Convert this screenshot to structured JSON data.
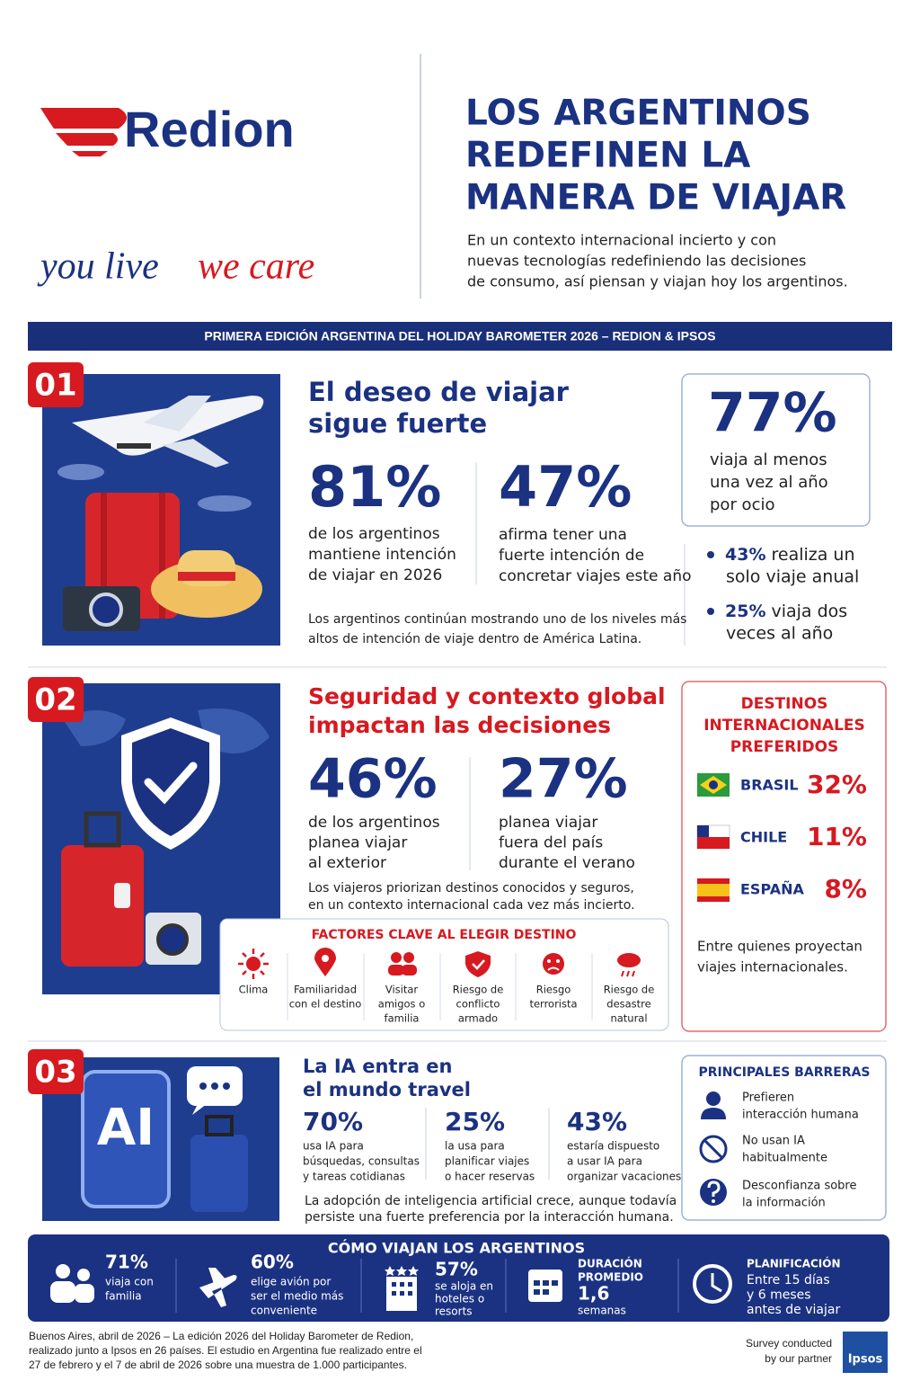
{
  "header": {
    "logo": "Redion",
    "tagline_1": "you live",
    "tagline_2": "we care",
    "title": [
      "LOS ARGENTINOS",
      "REDEFINEN LA",
      "MANERA DE VIAJAR"
    ],
    "intro": [
      "En un contexto internacional incierto y con",
      "nuevas tecnologías redefiniendo las decisiones",
      "de consumo, así piensan y viajan hoy los argentinos."
    ]
  },
  "banner": "PRIMERA EDICIÓN ARGENTINA DEL HOLIDAY BAROMETER 2026 – REDION & IPSOS",
  "section_1": {
    "number": "01",
    "title": [
      "El deseo de viajar",
      "sigue fuerte"
    ],
    "stats": [
      {
        "value": "81%",
        "text": [
          "de los argentinos",
          "mantiene intención",
          "de viajar en 2026"
        ]
      },
      {
        "value": "47%",
        "text": [
          "afirma tener una",
          "fuerte intención de",
          "concretar viajes este año"
        ]
      }
    ],
    "note": [
      "Los argentinos continúan mostrando uno de los niveles más",
      "altos de intención de viaje dentro de América Latina."
    ],
    "highlight": {
      "value": "77%",
      "text": [
        "viaja al menos",
        "una vez al año",
        "por ocio"
      ]
    },
    "bullets": [
      {
        "value": "43%",
        "text": [
          "realiza un",
          "solo viaje anual"
        ]
      },
      {
        "value": "25%",
        "text": [
          "viaja dos",
          "veces al año"
        ]
      }
    ]
  },
  "section_2": {
    "number": "02",
    "title": [
      "Seguridad y contexto global",
      "impactan las decisiones"
    ],
    "stats": [
      {
        "value": "46%",
        "text": [
          "de los argentinos",
          "planea viajar",
          "al exterior"
        ]
      },
      {
        "value": "27%",
        "text": [
          "planea viajar",
          "fuera del país",
          "durante el verano"
        ]
      }
    ],
    "note": [
      "Los viajeros priorizan destinos conocidos y seguros,",
      "en un contexto internacional cada vez más incierto."
    ],
    "factors": {
      "title": "FACTORES CLAVE AL ELEGIR DESTINO",
      "items": [
        [
          "Clima"
        ],
        [
          "Familiaridad",
          "con el destino"
        ],
        [
          "Visitar",
          "amigos o",
          "familia"
        ],
        [
          "Riesgo de",
          "conflicto",
          "armado"
        ],
        [
          "Riesgo",
          "terrorista"
        ],
        [
          "Riesgo de",
          "desastre",
          "natural"
        ]
      ]
    },
    "destinations": {
      "title": [
        "DESTINOS",
        "INTERNACIONALES",
        "PREFERIDOS"
      ],
      "items": [
        {
          "country": "BRASIL",
          "value": "32%"
        },
        {
          "country": "CHILE",
          "value": "11%"
        },
        {
          "country": "ESPAÑA",
          "value": "8%"
        }
      ],
      "note": [
        "Entre quienes proyectan",
        "viajes internacionales."
      ]
    }
  },
  "section_3": {
    "number": "03",
    "illustration_label": "AI",
    "title": [
      "La IA entra en",
      "el mundo travel"
    ],
    "stats": [
      {
        "value": "70%",
        "text": [
          "usa IA para",
          "búsquedas, consultas",
          "y tareas cotidianas"
        ]
      },
      {
        "value": "25%",
        "text": [
          "la usa para",
          "planificar viajes",
          "o hacer reservas"
        ]
      },
      {
        "value": "43%",
        "text": [
          "estaría dispuesto",
          "a usar IA para",
          "organizar vacaciones"
        ]
      }
    ],
    "note": [
      "La adopción de inteligencia artificial crece, aunque todavía",
      "persiste una fuerte preferencia por la interacción humana."
    ],
    "barriers": {
      "title": "PRINCIPALES BARRERAS",
      "items": [
        [
          "Prefieren",
          "interacción humana"
        ],
        [
          "No usan IA",
          "habitualmente"
        ],
        [
          "Desconfianza sobre",
          "la información"
        ]
      ]
    }
  },
  "summary": {
    "title": "CÓMO VIAJAN LOS ARGENTINOS",
    "items": [
      {
        "value": "71%",
        "text": [
          "viaja con",
          "familia"
        ]
      },
      {
        "value": "60%",
        "text": [
          "elige avión por",
          "ser el medio más",
          "conveniente"
        ]
      },
      {
        "value": "57%",
        "text": [
          "se aloja en",
          "hoteles o",
          "resorts"
        ]
      },
      {
        "label": [
          "DURACIÓN",
          "PROMEDIO"
        ],
        "value": "1,6",
        "text": [
          "semanas"
        ]
      },
      {
        "label": [
          "PLANIFICACIÓN"
        ],
        "text": [
          "Entre 15 días",
          "y 6 meses",
          "antes de viajar"
        ]
      }
    ]
  },
  "footnote": [
    "Buenos Aires, abril de 2026 – La edición 2026 del Holiday Barometer de Redion,",
    "realizado junto a Ipsos en 26 países. El estudio en Argentina fue realizado entre el",
    "27 de febrero y el 7 de abril de 2026 sobre una muestra de 1.000 participantes."
  ],
  "partner": {
    "text": [
      "Survey conducted",
      "by our partner"
    ],
    "logo": "Ipsos"
  }
}
